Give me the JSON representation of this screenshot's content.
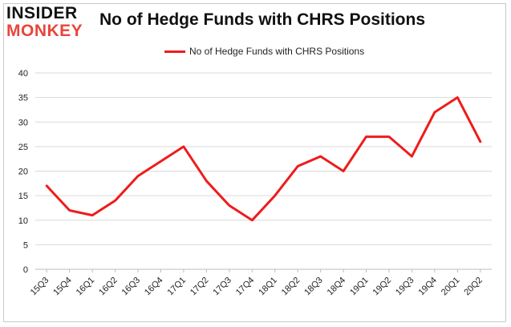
{
  "brand": {
    "line1": "INSIDER",
    "line2": "MONKEY"
  },
  "chart_data": {
    "type": "line",
    "title": "No of Hedge Funds with CHRS Positions",
    "xlabel": "",
    "ylabel": "",
    "ylim": [
      0,
      40
    ],
    "yticks": [
      0,
      5,
      10,
      15,
      20,
      25,
      30,
      35,
      40
    ],
    "grid": true,
    "legend_position": "top-center",
    "categories": [
      "15Q3",
      "15Q4",
      "16Q1",
      "16Q2",
      "16Q3",
      "16Q4",
      "17Q1",
      "17Q2",
      "17Q3",
      "17Q4",
      "18Q1",
      "18Q2",
      "18Q3",
      "18Q4",
      "19Q1",
      "19Q2",
      "19Q3",
      "19Q4",
      "20Q1",
      "20Q2"
    ],
    "series": [
      {
        "name": "No of Hedge Funds with CHRS Positions",
        "color": "#ee1c1c",
        "values": [
          17,
          12,
          11,
          14,
          19,
          22,
          25,
          18,
          13,
          10,
          15,
          21,
          23,
          20,
          27,
          27,
          23,
          32,
          35,
          26
        ]
      }
    ]
  }
}
